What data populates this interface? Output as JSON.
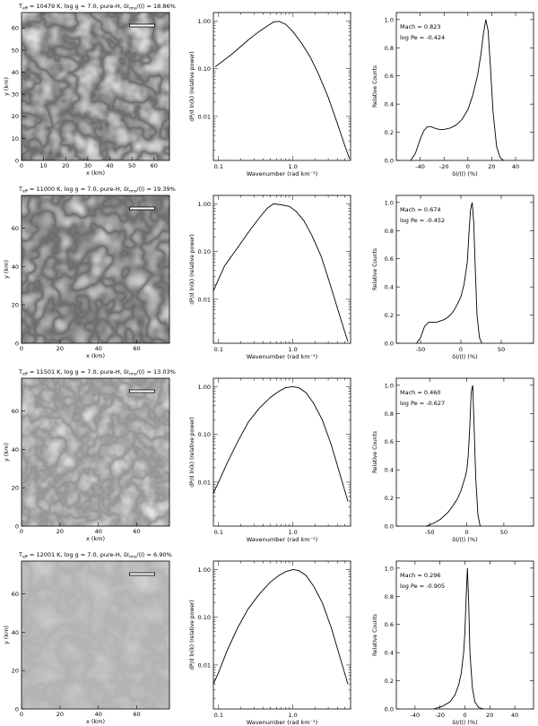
{
  "figure": {
    "rows": [
      {
        "image_panel": {
          "title": "T_eff = 10479 K, log g = 7.0, pure-H, δI_rms(I) = 18.86%",
          "title_parts": {
            "teff": "10479",
            "rms": "18.86%"
          },
          "xlabel": "x (km)",
          "ylabel": "y (km)",
          "xlim": [
            0,
            67
          ],
          "ylim": [
            0,
            67
          ],
          "xticks": [
            0,
            10,
            20,
            30,
            40,
            50,
            60
          ],
          "yticks": [
            0,
            10,
            20,
            30,
            40,
            50,
            60
          ]
        },
        "spectrum_panel": {
          "xlabel": "Wavenumber (rad km⁻¹)",
          "ylabel": "dP/d ln(k) (relative power)",
          "xscale": "log",
          "yscale": "log",
          "xlim": [
            0.085,
            6
          ],
          "ylim": [
            0.0012,
            1.5
          ],
          "xticks": [
            {
              "v": 0.1,
              "l": "0.1"
            },
            {
              "v": 1.0,
              "l": "1.0"
            }
          ],
          "yticks": [
            {
              "v": 1.0,
              "l": "1.00"
            },
            {
              "v": 0.1,
              "l": "0.10"
            },
            {
              "v": 0.01,
              "l": "0.01"
            }
          ],
          "x": [
            0.09,
            0.15,
            0.25,
            0.35,
            0.45,
            0.55,
            0.65,
            0.8,
            1.0,
            1.3,
            1.7,
            2.2,
            3.0,
            4.0,
            5.0,
            5.8
          ],
          "y": [
            0.11,
            0.2,
            0.4,
            0.6,
            0.78,
            0.95,
            0.98,
            0.85,
            0.6,
            0.35,
            0.18,
            0.08,
            0.025,
            0.007,
            0.0025,
            0.0013
          ]
        },
        "histogram_panel": {
          "xlabel": "δI/⟨I⟩ (%)",
          "ylabel": "Relative Counts",
          "mach_label": "Mach = 0.823",
          "peclet_label": "log Pe = -0.424",
          "xlim": [
            -60,
            55
          ],
          "ylim": [
            0,
            1.05
          ],
          "xticks": [
            -40,
            -20,
            0,
            20,
            40
          ],
          "yticks": [
            0.0,
            0.2,
            0.4,
            0.6,
            0.8,
            1.0
          ],
          "x": [
            -48,
            -44,
            -40,
            -37,
            -34,
            -31,
            -28,
            -24,
            -20,
            -15,
            -10,
            -5,
            0,
            4,
            8,
            11,
            13,
            15,
            17,
            19,
            21,
            24,
            27,
            30
          ],
          "y": [
            0.0,
            0.05,
            0.15,
            0.21,
            0.24,
            0.24,
            0.23,
            0.22,
            0.22,
            0.23,
            0.25,
            0.29,
            0.36,
            0.46,
            0.6,
            0.76,
            0.9,
            1.0,
            0.92,
            0.65,
            0.35,
            0.1,
            0.02,
            0.0
          ]
        }
      },
      {
        "image_panel": {
          "title": "T_eff = 11000 K, log g = 7.0, pure-H, δI_rms(I) = 19.39%",
          "title_parts": {
            "teff": "11000",
            "rms": "19.39%"
          },
          "xlabel": "x (km)",
          "ylabel": "y (km)",
          "xlim": [
            0,
            77
          ],
          "ylim": [
            0,
            77
          ],
          "xticks": [
            0,
            20,
            40,
            60
          ],
          "yticks": [
            0,
            20,
            40,
            60
          ]
        },
        "spectrum_panel": {
          "xlabel": "Wavenumber (rad km⁻¹)",
          "ylabel": "dP/d ln(k) (relative power)",
          "xscale": "log",
          "yscale": "log",
          "xlim": [
            0.085,
            6
          ],
          "ylim": [
            0.0012,
            1.5
          ],
          "xticks": [
            {
              "v": 0.1,
              "l": "0.1"
            },
            {
              "v": 1.0,
              "l": "1.0"
            }
          ],
          "yticks": [
            {
              "v": 1.0,
              "l": "1.00"
            },
            {
              "v": 0.1,
              "l": "0.10"
            },
            {
              "v": 0.01,
              "l": "0.01"
            }
          ],
          "x": [
            0.085,
            0.12,
            0.18,
            0.25,
            0.35,
            0.45,
            0.55,
            0.7,
            0.9,
            1.1,
            1.4,
            1.8,
            2.4,
            3.2,
            4.2,
            5.5
          ],
          "y": [
            0.015,
            0.05,
            0.12,
            0.25,
            0.5,
            0.8,
            1.0,
            0.95,
            0.88,
            0.7,
            0.45,
            0.22,
            0.08,
            0.02,
            0.005,
            0.0013
          ]
        },
        "histogram_panel": {
          "xlabel": "δI/⟨I⟩ (%)",
          "ylabel": "Relative Counts",
          "mach_label": "Mach = 0.674",
          "peclet_label": "log Pe = -0.452",
          "xlim": [
            -80,
            90
          ],
          "ylim": [
            0,
            1.05
          ],
          "xticks": [
            -50,
            0,
            50
          ],
          "yticks": [
            0.0,
            0.2,
            0.4,
            0.6,
            0.8,
            1.0
          ],
          "x": [
            -55,
            -50,
            -45,
            -40,
            -35,
            -30,
            -25,
            -20,
            -15,
            -10,
            -5,
            0,
            4,
            8,
            10,
            12,
            14,
            16,
            18,
            20,
            23,
            26
          ],
          "y": [
            0.0,
            0.04,
            0.12,
            0.15,
            0.15,
            0.15,
            0.16,
            0.17,
            0.19,
            0.22,
            0.27,
            0.33,
            0.42,
            0.58,
            0.78,
            0.95,
            1.0,
            0.85,
            0.5,
            0.2,
            0.04,
            0.0
          ]
        }
      },
      {
        "image_panel": {
          "title": "T_eff = 11501 K, log g = 7.0, pure-H, δI_rms(I) = 13.03%",
          "title_parts": {
            "teff": "11501",
            "rms": "13.03%"
          },
          "xlabel": "x (km)",
          "ylabel": "y (km)",
          "xlim": [
            0,
            77
          ],
          "ylim": [
            0,
            77
          ],
          "xticks": [
            0,
            20,
            40,
            60
          ],
          "yticks": [
            0,
            20,
            40,
            60
          ]
        },
        "spectrum_panel": {
          "xlabel": "Wavenumber (rad km⁻¹)",
          "ylabel": "dP/d ln(k) (relative power)",
          "xscale": "log",
          "yscale": "log",
          "xlim": [
            0.085,
            6
          ],
          "ylim": [
            0.0012,
            1.5
          ],
          "xticks": [
            {
              "v": 0.1,
              "l": "0.1"
            },
            {
              "v": 1.0,
              "l": "1.0"
            }
          ],
          "yticks": [
            {
              "v": 1.0,
              "l": "1.00"
            },
            {
              "v": 0.1,
              "l": "0.10"
            },
            {
              "v": 0.01,
              "l": "0.01"
            }
          ],
          "x": [
            0.085,
            0.1,
            0.13,
            0.18,
            0.25,
            0.35,
            0.5,
            0.65,
            0.8,
            1.0,
            1.2,
            1.5,
            1.9,
            2.5,
            3.3,
            4.3,
            5.5
          ],
          "y": [
            0.006,
            0.01,
            0.025,
            0.07,
            0.18,
            0.35,
            0.6,
            0.8,
            0.95,
            1.0,
            0.95,
            0.75,
            0.45,
            0.2,
            0.06,
            0.015,
            0.004
          ]
        },
        "histogram_panel": {
          "xlabel": "δI/⟨I⟩ (%)",
          "ylabel": "Relative Counts",
          "mach_label": "Mach = 0.460",
          "peclet_label": "log Pe = -0.627",
          "xlim": [
            -95,
            90
          ],
          "ylim": [
            0,
            1.05
          ],
          "xticks": [
            -50,
            0,
            50
          ],
          "yticks": [
            0.0,
            0.2,
            0.4,
            0.6,
            0.8,
            1.0
          ],
          "x": [
            -55,
            -45,
            -35,
            -25,
            -18,
            -12,
            -8,
            -5,
            -2,
            0,
            2,
            4,
            6,
            8,
            10,
            12,
            15,
            18
          ],
          "y": [
            0.0,
            0.02,
            0.05,
            0.1,
            0.15,
            0.2,
            0.25,
            0.3,
            0.35,
            0.4,
            0.5,
            0.7,
            0.95,
            1.0,
            0.7,
            0.35,
            0.08,
            0.0
          ]
        }
      },
      {
        "image_panel": {
          "title": "T_eff = 12001 K, log g = 7.0, pure-H, δI_rms(I) = 6.90%",
          "title_parts": {
            "teff": "12001",
            "rms": "6.90%"
          },
          "xlabel": "x (km)",
          "ylabel": "y (km)",
          "xlim": [
            0,
            77
          ],
          "ylim": [
            0,
            77
          ],
          "xticks": [
            0,
            20,
            40,
            60
          ],
          "yticks": [
            0,
            20,
            40,
            60
          ]
        },
        "spectrum_panel": {
          "xlabel": "Wavenumber (rad km⁻¹)",
          "ylabel": "dP/d ln(k) (relative power)",
          "xscale": "log",
          "yscale": "log",
          "xlim": [
            0.085,
            6
          ],
          "ylim": [
            0.0012,
            1.5
          ],
          "xticks": [
            {
              "v": 0.1,
              "l": "0.1"
            },
            {
              "v": 1.0,
              "l": "1.0"
            }
          ],
          "yticks": [
            {
              "v": 1.0,
              "l": "1.00"
            },
            {
              "v": 0.1,
              "l": "0.10"
            },
            {
              "v": 0.01,
              "l": "0.01"
            }
          ],
          "x": [
            0.085,
            0.1,
            0.13,
            0.18,
            0.25,
            0.35,
            0.5,
            0.65,
            0.8,
            1.0,
            1.2,
            1.5,
            1.9,
            2.5,
            3.3,
            4.3,
            5.5
          ],
          "y": [
            0.004,
            0.007,
            0.02,
            0.06,
            0.15,
            0.3,
            0.55,
            0.75,
            0.9,
            1.0,
            0.95,
            0.75,
            0.45,
            0.2,
            0.06,
            0.015,
            0.004
          ]
        },
        "histogram_panel": {
          "xlabel": "δI/⟨I⟩ (%)",
          "ylabel": "Relative Counts",
          "mach_label": "Mach = 0.296",
          "peclet_label": "log Pe = -0.905",
          "xlim": [
            -55,
            55
          ],
          "ylim": [
            0,
            1.05
          ],
          "xticks": [
            -40,
            -20,
            0,
            20,
            40
          ],
          "yticks": [
            0.0,
            0.2,
            0.4,
            0.6,
            0.8,
            1.0
          ],
          "x": [
            -25,
            -18,
            -12,
            -8,
            -5,
            -3,
            -1,
            0,
            1,
            2,
            3,
            4,
            6,
            8,
            11,
            15
          ],
          "y": [
            0.0,
            0.02,
            0.05,
            0.1,
            0.17,
            0.25,
            0.4,
            0.55,
            0.8,
            1.0,
            0.75,
            0.4,
            0.15,
            0.05,
            0.01,
            0.0
          ]
        }
      }
    ]
  },
  "chart_data": [
    {
      "type": "heatmap",
      "title": "T_eff = 10479 K, log g = 7.0, pure-H, δI_rms(I) = 18.86%",
      "xlabel": "x (km)",
      "ylabel": "y (km)",
      "xlim": [
        0,
        67
      ],
      "ylim": [
        0,
        67
      ]
    },
    {
      "type": "line",
      "xlabel": "Wavenumber (rad km⁻¹)",
      "ylabel": "dP/d ln(k) (relative power)",
      "xscale": "log",
      "yscale": "log"
    },
    {
      "type": "line",
      "xlabel": "δI/⟨I⟩ (%)",
      "ylabel": "Relative Counts",
      "annotations": [
        "Mach = 0.823",
        "log Pe = -0.424"
      ]
    },
    {
      "type": "heatmap",
      "title": "T_eff = 11000 K, log g = 7.0, pure-H, δI_rms(I) = 19.39%",
      "xlabel": "x (km)",
      "ylabel": "y (km)",
      "xlim": [
        0,
        77
      ],
      "ylim": [
        0,
        77
      ]
    },
    {
      "type": "line",
      "xlabel": "Wavenumber (rad km⁻¹)",
      "ylabel": "dP/d ln(k) (relative power)",
      "xscale": "log",
      "yscale": "log"
    },
    {
      "type": "line",
      "xlabel": "δI/⟨I⟩ (%)",
      "ylabel": "Relative Counts",
      "annotations": [
        "Mach = 0.674",
        "log Pe = -0.452"
      ]
    },
    {
      "type": "heatmap",
      "title": "T_eff = 11501 K, log g = 7.0, pure-H, δI_rms(I) = 13.03%",
      "xlabel": "x (km)",
      "ylabel": "y (km)",
      "xlim": [
        0,
        77
      ],
      "ylim": [
        0,
        77
      ]
    },
    {
      "type": "line",
      "xlabel": "Wavenumber (rad km⁻¹)",
      "ylabel": "dP/d ln(k) (relative power)",
      "xscale": "log",
      "yscale": "log"
    },
    {
      "type": "line",
      "xlabel": "δI/⟨I⟩ (%)",
      "ylabel": "Relative Counts",
      "annotations": [
        "Mach = 0.460",
        "log Pe = -0.627"
      ]
    },
    {
      "type": "heatmap",
      "title": "T_eff = 12001 K, log g = 7.0, pure-H, δI_rms(I) = 6.90%",
      "xlabel": "x (km)",
      "ylabel": "y (km)",
      "xlim": [
        0,
        77
      ],
      "ylim": [
        0,
        77
      ]
    },
    {
      "type": "line",
      "xlabel": "Wavenumber (rad km⁻¹)",
      "ylabel": "dP/d ln(k) (relative power)",
      "xscale": "log",
      "yscale": "log"
    },
    {
      "type": "line",
      "xlabel": "δI/⟨I⟩ (%)",
      "ylabel": "Relative Counts",
      "annotations": [
        "Mach = 0.296",
        "log Pe = -0.905"
      ]
    }
  ]
}
